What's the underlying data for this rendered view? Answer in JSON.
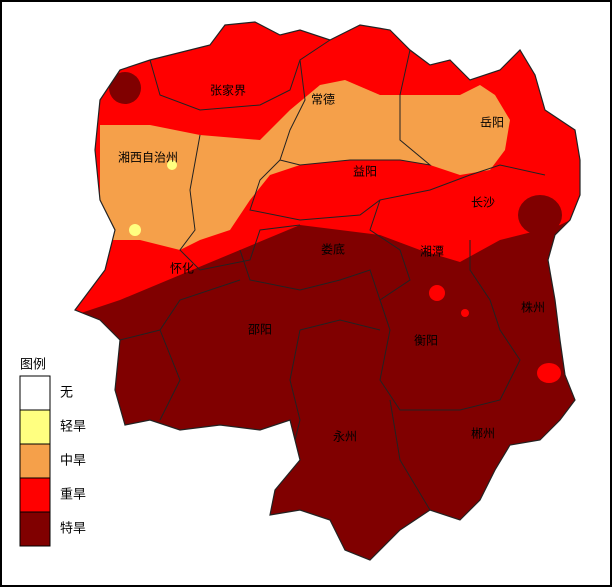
{
  "map": {
    "cities": [
      "张家界",
      "常德",
      "岳阳",
      "湘西自治州",
      "益阳",
      "长沙",
      "娄底",
      "湘潭",
      "怀化",
      "株州",
      "邵阳",
      "衡阳",
      "永州",
      "郴州"
    ],
    "legend": {
      "title": "图例",
      "items": [
        {
          "label": "无",
          "color": "#ffffff"
        },
        {
          "label": "轻旱",
          "color": "#ffff80"
        },
        {
          "label": "中旱",
          "color": "#f5a04a"
        },
        {
          "label": "重旱",
          "color": "#ff0000"
        },
        {
          "label": "特旱",
          "color": "#800000"
        }
      ]
    }
  }
}
